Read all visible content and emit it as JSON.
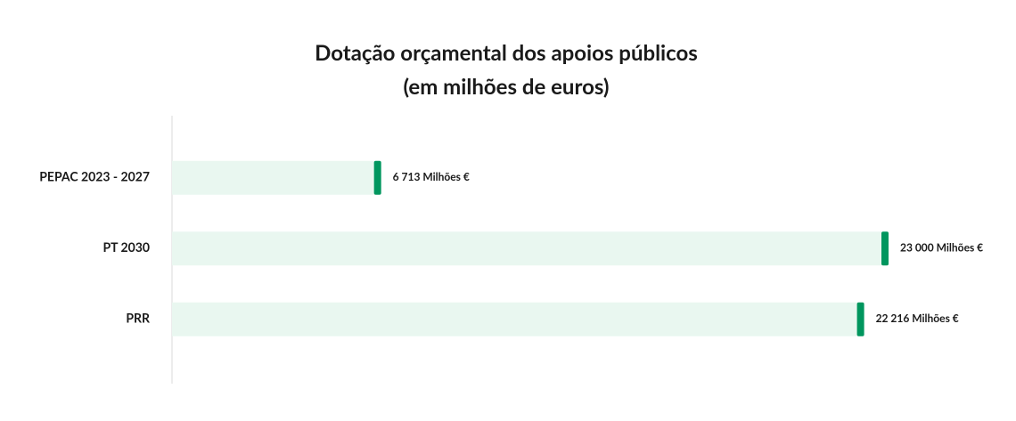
{
  "chart_data": {
    "type": "bar",
    "orientation": "horizontal",
    "title": "Dotação orçamental dos apoios públicos",
    "subtitle": "(em milhões de euros)",
    "categories": [
      "PEPAC 2023 - 2027",
      "PT 2030",
      "PRR"
    ],
    "values": [
      6713,
      23000,
      22216
    ],
    "value_labels": [
      "6 713 Milhões €",
      "23 000 Milhões €",
      "22 216 Milhões €"
    ],
    "color": "#e9f7f0",
    "accent_color": "#00965e"
  }
}
